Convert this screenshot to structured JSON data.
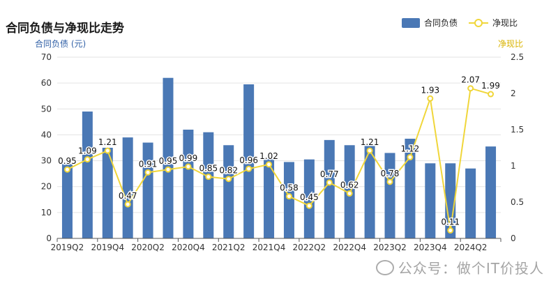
{
  "chart_data": {
    "type": "bar",
    "title": "合同负债与净现比走势",
    "categories": [
      "2019Q2",
      "2019Q3",
      "2019Q4",
      "2020Q1",
      "2020Q2",
      "2020Q3",
      "2020Q4",
      "2021Q1",
      "2021Q2",
      "2021Q3",
      "2021Q4",
      "2022Q1",
      "2022Q2",
      "2022Q3",
      "2022Q4",
      "2023Q1",
      "2023Q2",
      "2023Q3",
      "2023Q4",
      "2024Q1",
      "2024Q2",
      "2024Q3"
    ],
    "x_tick_labels": [
      "2019Q2",
      "2019Q4",
      "2020Q2",
      "2020Q4",
      "2021Q2",
      "2021Q4",
      "2022Q2",
      "2022Q4",
      "2023Q2",
      "2023Q4",
      "2024Q2"
    ],
    "series": [
      {
        "name": "合同负债",
        "type": "bar",
        "axis": "left",
        "color": "#4a78b5",
        "values": [
          29,
          49,
          35,
          39,
          37,
          62,
          42,
          41,
          36,
          59.5,
          31,
          29.5,
          30.5,
          38,
          36,
          36.5,
          33,
          38.5,
          29,
          29,
          27,
          35.5
        ]
      },
      {
        "name": "净现比",
        "type": "line",
        "axis": "right",
        "color": "#f0d63a",
        "values": [
          0.95,
          1.09,
          1.21,
          0.47,
          0.91,
          0.95,
          0.99,
          0.85,
          0.82,
          0.96,
          1.02,
          0.58,
          0.45,
          0.77,
          0.62,
          1.21,
          0.78,
          1.12,
          1.93,
          0.11,
          2.07,
          1.99
        ],
        "labels": [
          "0.95",
          "1.09",
          "1.21",
          "0.47",
          "0.91",
          "0.95",
          "0.99",
          "0.85",
          "0.82",
          "0.96",
          "1.02",
          "0.58",
          "0.45",
          "0.77",
          "0.62",
          "1.21",
          "0.78",
          "1.12",
          "1.93",
          "0.11",
          "2.07",
          "1.99"
        ]
      }
    ],
    "y_left": {
      "label": "合同负债 (元)",
      "min": 0,
      "max": 70,
      "ticks": [
        "0",
        "10",
        "20",
        "30",
        "40",
        "50",
        "60",
        "70"
      ],
      "color": "#2f5fa6"
    },
    "y_right": {
      "label": "净现比",
      "min": 0,
      "max": 2.5,
      "ticks": [
        "0",
        "0.5",
        "1",
        "1.5",
        "2",
        "2.5"
      ],
      "color": "#d9b300"
    },
    "grid": true,
    "legend_position": "top-right"
  },
  "watermark": "公众号：做个IT价投人",
  "icons": {
    "watermark": "wechat-icon"
  }
}
